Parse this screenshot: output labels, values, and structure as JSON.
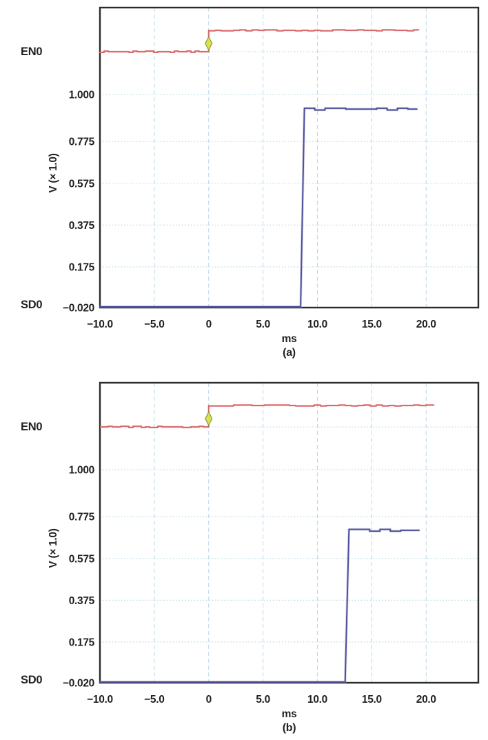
{
  "figure": {
    "background": "#ffffff"
  },
  "colors": {
    "frame": "#2b2b2b",
    "grid": "#aed4e6",
    "text": "#231f20",
    "en0_trace": "#d96b6e",
    "sd0_trace": "#4c4c99",
    "sd0_halo": "#8e8ec4",
    "marker_fill": "#dbe14d",
    "marker_stroke": "#8f9546"
  },
  "chart_data": [
    {
      "id": "a",
      "type": "line",
      "caption": "(a)",
      "xlabel": "ms",
      "ylabel": "V (× 1.0)",
      "grid": true,
      "legend": "none",
      "x_range": [
        -10,
        24.8
      ],
      "y_range": [
        -0.02,
        1.416
      ],
      "x_ticks": [
        {
          "v": -10,
          "label": "−10.0"
        },
        {
          "v": -5,
          "label": "−5.0"
        },
        {
          "v": 0,
          "label": "0"
        },
        {
          "v": 5,
          "label": "5.0"
        },
        {
          "v": 10,
          "label": "10.0"
        },
        {
          "v": 15,
          "label": "15.0"
        },
        {
          "v": 20,
          "label": "20.0"
        }
      ],
      "y_ticks": [
        {
          "v": 1.0,
          "label": "1.000"
        },
        {
          "v": 0.775,
          "label": "0.775"
        },
        {
          "v": 0.575,
          "label": "0.575"
        },
        {
          "v": 0.375,
          "label": "0.375"
        },
        {
          "v": 0.175,
          "label": "0.175"
        },
        {
          "v": -0.02,
          "label": "−0.020"
        }
      ],
      "series": [
        {
          "name": "EN0",
          "kind": "digital",
          "color": "#d96b6e",
          "points": [
            [
              -10,
              0
            ],
            [
              0,
              0
            ],
            [
              0,
              1
            ],
            [
              19.3,
              1
            ]
          ]
        },
        {
          "name": "SD0",
          "kind": "analog",
          "color": "#4c4c99",
          "points": [
            [
              -10,
              -0.02
            ],
            [
              8.45,
              -0.02
            ],
            [
              8.8,
              0.93
            ],
            [
              19.2,
              0.93
            ]
          ]
        }
      ],
      "marker": {
        "shape": "diamond",
        "x": 0,
        "fill": "#dbe14d",
        "stroke": "#8f9546"
      }
    },
    {
      "id": "b",
      "type": "line",
      "caption": "(b)",
      "xlabel": "ms",
      "ylabel": "V (× 1.0)",
      "grid": true,
      "legend": "none",
      "x_range": [
        -10,
        24.8
      ],
      "y_range": [
        -0.02,
        1.416
      ],
      "x_ticks": [
        {
          "v": -10,
          "label": "−10.0"
        },
        {
          "v": -5,
          "label": "−5.0"
        },
        {
          "v": 0,
          "label": "0"
        },
        {
          "v": 5,
          "label": "5.0"
        },
        {
          "v": 10,
          "label": "10.0"
        },
        {
          "v": 15,
          "label": "15.0"
        },
        {
          "v": 20,
          "label": "20.0"
        }
      ],
      "y_ticks": [
        {
          "v": 1.0,
          "label": "1.000"
        },
        {
          "v": 0.775,
          "label": "0.775"
        },
        {
          "v": 0.575,
          "label": "0.575"
        },
        {
          "v": 0.375,
          "label": "0.375"
        },
        {
          "v": 0.175,
          "label": "0.175"
        },
        {
          "v": -0.02,
          "label": "−0.020"
        }
      ],
      "series": [
        {
          "name": "EN0",
          "kind": "digital",
          "color": "#d96b6e",
          "points": [
            [
              -10,
              0
            ],
            [
              0,
              0
            ],
            [
              0,
              1
            ],
            [
              20.7,
              1
            ]
          ]
        },
        {
          "name": "SD0",
          "kind": "analog",
          "color": "#4c4c99",
          "points": [
            [
              -10,
              -0.02
            ],
            [
              12.55,
              -0.02
            ],
            [
              12.9,
              0.71
            ],
            [
              19.4,
              0.71
            ]
          ]
        }
      ],
      "marker": {
        "shape": "diamond",
        "x": 0,
        "fill": "#dbe14d",
        "stroke": "#8f9546"
      }
    }
  ]
}
